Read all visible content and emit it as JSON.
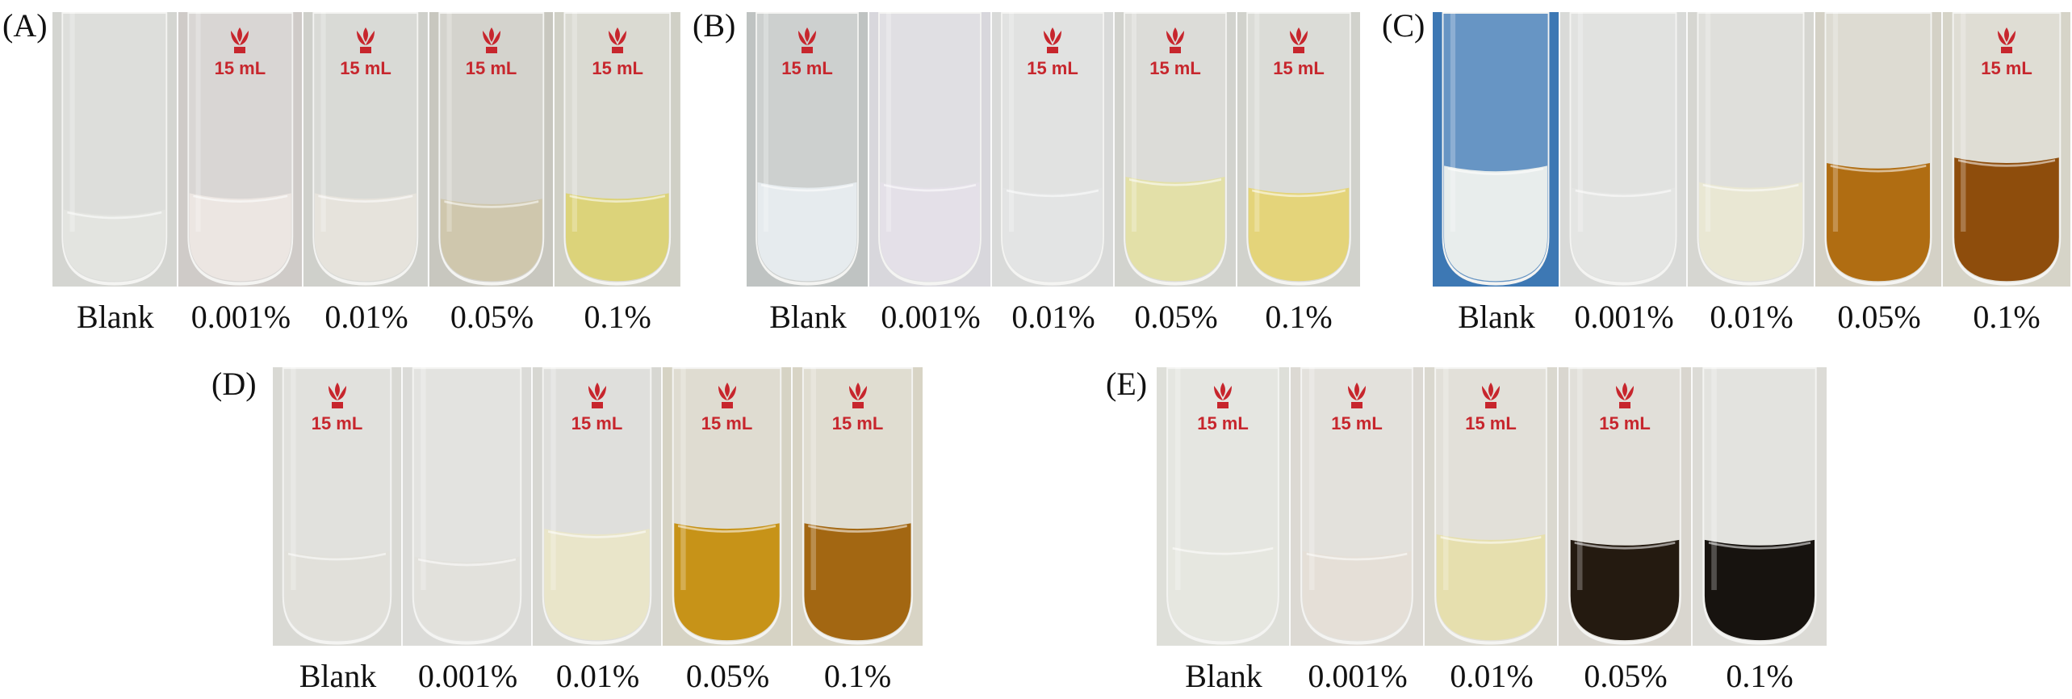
{
  "caption_labels": [
    "Blank",
    "0.001%",
    "0.01%",
    "0.05%",
    "0.1%"
  ],
  "volume_mark": "15 mL",
  "panels": [
    {
      "label": "(A)",
      "tubes": [
        {
          "bg": "#d4d5d1",
          "liquid": "#e3e4e0",
          "level": 0.72,
          "mark": false
        },
        {
          "bg": "#cfcbc8",
          "liquid": "#ece6e2",
          "level": 0.66,
          "mark": true
        },
        {
          "bg": "#cfd0cb",
          "liquid": "#e6e3dc",
          "level": 0.66,
          "mark": true
        },
        {
          "bg": "#c8c7bf",
          "liquid": "#cfc7ad",
          "level": 0.68,
          "mark": true
        },
        {
          "bg": "#d0d0c6",
          "liquid": "#dcd37a",
          "level": 0.66,
          "mark": true
        }
      ]
    },
    {
      "label": "(B)",
      "tubes": [
        {
          "bg": "#bfc3c2",
          "liquid": "#e6ebee",
          "level": 0.62,
          "mark": true
        },
        {
          "bg": "#d8d7dc",
          "liquid": "#e4e0e8",
          "level": 0.62,
          "mark": false
        },
        {
          "bg": "#d9dad9",
          "liquid": "#e3e4e4",
          "level": 0.64,
          "mark": true
        },
        {
          "bg": "#d2d3ce",
          "liquid": "#e3e0a8",
          "level": 0.6,
          "mark": true
        },
        {
          "bg": "#d1d2cc",
          "liquid": "#e4d47a",
          "level": 0.64,
          "mark": true
        }
      ]
    },
    {
      "label": "(C)",
      "tubes": [
        {
          "bg": "#3d78b4",
          "liquid": "#e8edec",
          "level": 0.56,
          "mark": false
        },
        {
          "bg": "#d9dad8",
          "liquid": "#e4e5e3",
          "level": 0.64,
          "mark": false
        },
        {
          "bg": "#d6d6d1",
          "liquid": "#e9e7d3",
          "level": 0.62,
          "mark": false
        },
        {
          "bg": "#d4d1c6",
          "liquid": "#b06d12",
          "level": 0.55,
          "mark": false
        },
        {
          "bg": "#d6d4c8",
          "liquid": "#8e4d0c",
          "level": 0.53,
          "mark": true
        }
      ]
    },
    {
      "label": "(D)",
      "tubes": [
        {
          "bg": "#d9d9d4",
          "liquid": "#e1e0da",
          "level": 0.66,
          "mark": true
        },
        {
          "bg": "#dbdbd8",
          "liquid": "#e2e1dc",
          "level": 0.68,
          "mark": false
        },
        {
          "bg": "#d7d7d2",
          "liquid": "#e9e5c9",
          "level": 0.58,
          "mark": true
        },
        {
          "bg": "#d6d3c4",
          "liquid": "#c79318",
          "level": 0.56,
          "mark": true
        },
        {
          "bg": "#d8d4c5",
          "liquid": "#a36712",
          "level": 0.56,
          "mark": true
        }
      ]
    },
    {
      "label": "(E)",
      "tubes": [
        {
          "bg": "#dedfd9",
          "liquid": "#e6e7e0",
          "level": 0.64,
          "mark": true
        },
        {
          "bg": "#dcd9d3",
          "liquid": "#e5dfd7",
          "level": 0.66,
          "mark": true
        },
        {
          "bg": "#dad8cf",
          "liquid": "#e6dfae",
          "level": 0.6,
          "mark": true
        },
        {
          "bg": "#d9d6cf",
          "liquid": "#241a10",
          "level": 0.62,
          "mark": true
        },
        {
          "bg": "#dcdbd6",
          "liquid": "#17130f",
          "level": 0.62,
          "mark": false
        }
      ]
    }
  ]
}
